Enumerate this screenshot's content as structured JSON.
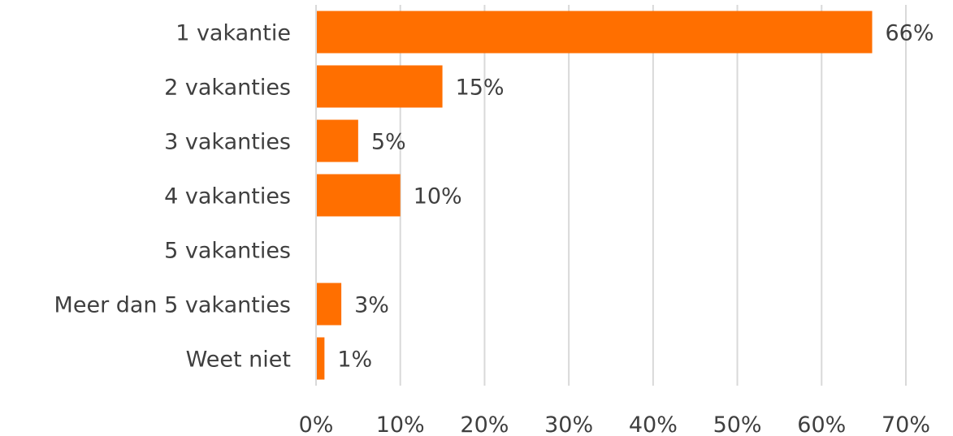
{
  "chart_data": {
    "type": "bar",
    "orientation": "horizontal",
    "categories": [
      "1 vakantie",
      "2 vakanties",
      "3 vakanties",
      "4 vakanties",
      "5 vakanties",
      "Meer dan 5 vakanties",
      "Weet niet"
    ],
    "values": [
      66,
      15,
      5,
      10,
      null,
      3,
      1
    ],
    "data_labels": [
      "66%",
      "15%",
      "5%",
      "10%",
      "",
      "3%",
      "1%"
    ],
    "x_ticks": [
      "0%",
      "10%",
      "20%",
      "30%",
      "40%",
      "50%",
      "60%",
      "70%"
    ],
    "xlim": [
      0,
      70
    ],
    "title": "",
    "xlabel": "",
    "ylabel": "",
    "grid": true,
    "legend": "none",
    "bar_color": "#FF6F00"
  }
}
